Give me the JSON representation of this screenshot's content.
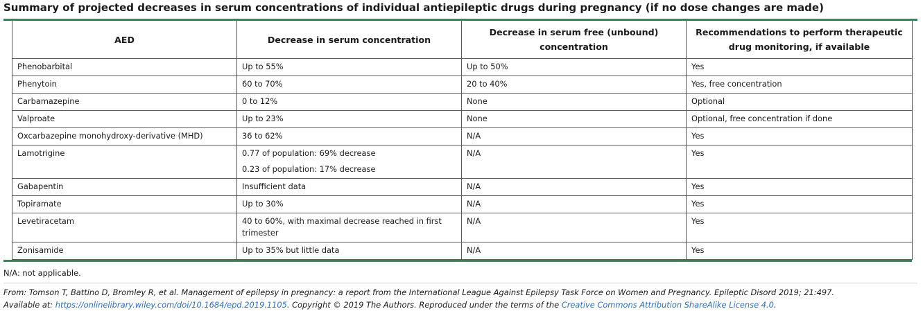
{
  "title": "Summary of projected decreases in serum concentrations of individual antiepileptic drugs during pregnancy (if no dose changes are made)",
  "table": {
    "headers": [
      "AED",
      "Decrease in serum concentration",
      "Decrease in serum free (unbound) concentration",
      "Recommendations to perform therapeutic drug monitoring, if available"
    ],
    "rows": [
      {
        "aed": "Phenobarbital",
        "serum": [
          "Up to 55%"
        ],
        "free": "Up to 50%",
        "rec": "Yes"
      },
      {
        "aed": "Phenytoin",
        "serum": [
          "60 to 70%"
        ],
        "free": "20 to 40%",
        "rec": "Yes, free concentration"
      },
      {
        "aed": "Carbamazepine",
        "serum": [
          "0 to 12%"
        ],
        "free": "None",
        "rec": "Optional"
      },
      {
        "aed": "Valproate",
        "serum": [
          "Up to 23%"
        ],
        "free": "None",
        "rec": "Optional, free concentration if done"
      },
      {
        "aed": "Oxcarbazepine monohydroxy-derivative (MHD)",
        "serum": [
          "36 to 62%"
        ],
        "free": "N/A",
        "rec": "Yes"
      },
      {
        "aed": "Lamotrigine",
        "serum": [
          "0.77 of population: 69% decrease",
          "0.23 of population: 17% decrease"
        ],
        "free": "N/A",
        "rec": "Yes"
      },
      {
        "aed": "Gabapentin",
        "serum": [
          "Insufficient data"
        ],
        "free": "N/A",
        "rec": "Yes"
      },
      {
        "aed": "Topiramate",
        "serum": [
          "Up to 30%"
        ],
        "free": "N/A",
        "rec": "Yes"
      },
      {
        "aed": "Levetiracetam",
        "serum": [
          "40 to 60%, with maximal decrease reached in first trimester"
        ],
        "free": "N/A",
        "rec": "Yes"
      },
      {
        "aed": "Zonisamide",
        "serum": [
          "Up to 35% but little data"
        ],
        "free": "N/A",
        "rec": "Yes"
      }
    ]
  },
  "footnote": "N/A: not applicable.",
  "source": {
    "text_before": "From: Tomson T, Battino D, Bromley R, et al. Management of epilepsy in pregnancy: a report from the International League Against Epilepsy Task Force on Women and Pregnancy. Epileptic Disord 2019; 21:497. Available at: ",
    "url_text": "https://onlinelibrary.wiley.com/doi/10.1684/epd.2019.1105",
    "text_middle": ". Copyright © 2019 The Authors. Reproduced under the terms of the ",
    "license_text": "Creative Commons Attribution ShareAlike License 4.0",
    "text_end": "."
  },
  "colors": {
    "accent_rule": "#2e8b57",
    "link": "#2a6ebb",
    "border": "#5a5a5a"
  }
}
